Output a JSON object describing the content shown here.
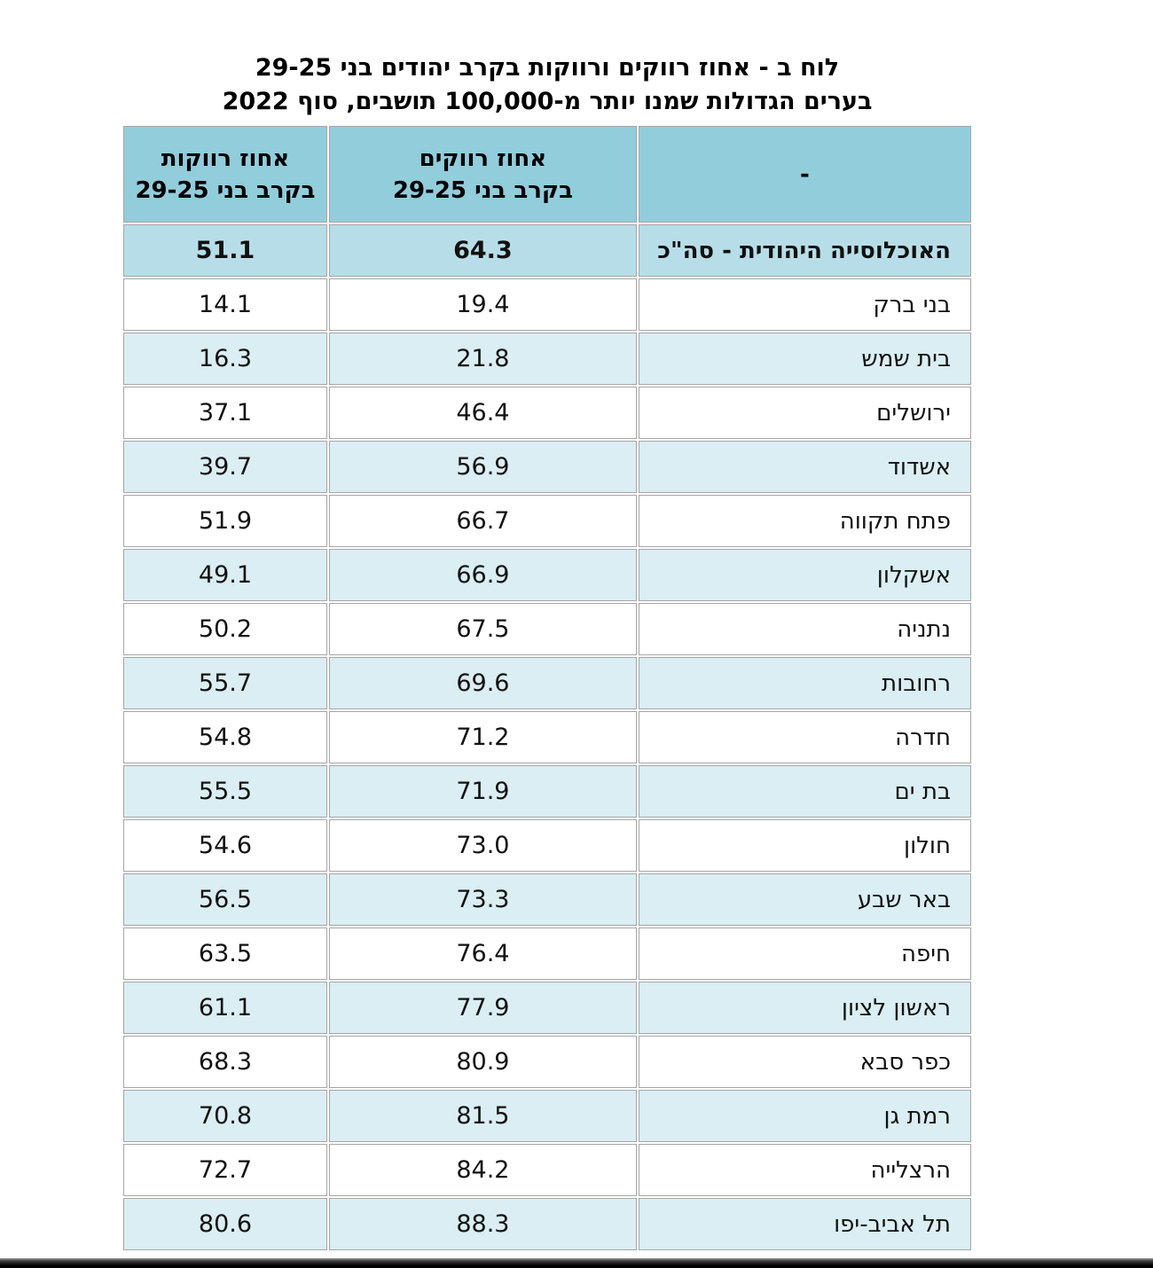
{
  "title": {
    "line1": "לוח ב - אחוז רווקים ורווקות בקרב יהודים בני 29-25",
    "line2": "בערים הגדולות שמנו יותר מ-100,000 תושבים, סוף 2022"
  },
  "table": {
    "headers": {
      "city_dash": "-",
      "men_line1": "אחוז רווקים",
      "men_line2": "בקרב בני 29-25",
      "women_line1": "אחוז רווקות",
      "women_line2": "בקרב בני 29-25"
    },
    "total": {
      "city": "האוכלוסייה היהודית - סה\"כ",
      "men": "64.3",
      "women": "51.1"
    },
    "rows": [
      {
        "city": "בני ברק",
        "men": "19.4",
        "women": "14.1"
      },
      {
        "city": "בית שמש",
        "men": "21.8",
        "women": "16.3"
      },
      {
        "city": "ירושלים",
        "men": "46.4",
        "women": "37.1"
      },
      {
        "city": "אשדוד",
        "men": "56.9",
        "women": "39.7"
      },
      {
        "city": "פתח תקווה",
        "men": "66.7",
        "women": "51.9"
      },
      {
        "city": "אשקלון",
        "men": "66.9",
        "women": "49.1"
      },
      {
        "city": "נתניה",
        "men": "67.5",
        "women": "50.2"
      },
      {
        "city": "רחובות",
        "men": "69.6",
        "women": "55.7"
      },
      {
        "city": "חדרה",
        "men": "71.2",
        "women": "54.8"
      },
      {
        "city": "בת ים",
        "men": "71.9",
        "women": "55.5"
      },
      {
        "city": "חולון",
        "men": "73.0",
        "women": "54.6"
      },
      {
        "city": "באר שבע",
        "men": "73.3",
        "women": "56.5"
      },
      {
        "city": "חיפה",
        "men": "76.4",
        "women": "63.5"
      },
      {
        "city": "ראשון לציון",
        "men": "77.9",
        "women": "61.1"
      },
      {
        "city": "כפר סבא",
        "men": "80.9",
        "women": "68.3"
      },
      {
        "city": "רמת גן",
        "men": "81.5",
        "women": "70.8"
      },
      {
        "city": "הרצלייה",
        "men": "84.2",
        "women": "72.7"
      },
      {
        "city": "תל אביב-יפו",
        "men": "88.3",
        "women": "80.6"
      }
    ]
  },
  "colors": {
    "header_bg": "#92CDDC",
    "total_row_bg": "#B7DEE8",
    "alt_row_bg": "#DAEEF3",
    "cell_border": "#A6A6A6",
    "bottom_bar": "#000000"
  },
  "chart_data": {
    "type": "table",
    "title": "לוח ב - אחוז רווקים ורווקות בקרב יהודים בני 29-25 בערים הגדולות שמנו יותר מ-100,000 תושבים, סוף 2022",
    "categories": [
      "האוכלוסייה היהודית - סה\"כ",
      "בני ברק",
      "בית שמש",
      "ירושלים",
      "אשדוד",
      "פתח תקווה",
      "אשקלון",
      "נתניה",
      "רחובות",
      "חדרה",
      "בת ים",
      "חולון",
      "באר שבע",
      "חיפה",
      "ראשון לציון",
      "כפר סבא",
      "רמת גן",
      "הרצלייה",
      "תל אביב-יפו"
    ],
    "series": [
      {
        "name": "אחוז רווקים בקרב בני 29-25",
        "values": [
          64.3,
          19.4,
          21.8,
          46.4,
          56.9,
          66.7,
          66.9,
          67.5,
          69.6,
          71.2,
          71.9,
          73.0,
          73.3,
          76.4,
          77.9,
          80.9,
          81.5,
          84.2,
          88.3
        ]
      },
      {
        "name": "אחוז רווקות בקרב בני 29-25",
        "values": [
          51.1,
          14.1,
          16.3,
          37.1,
          39.7,
          51.9,
          49.1,
          50.2,
          55.7,
          54.8,
          55.5,
          54.6,
          56.5,
          63.5,
          61.1,
          68.3,
          70.8,
          72.7,
          80.6
        ]
      }
    ]
  }
}
